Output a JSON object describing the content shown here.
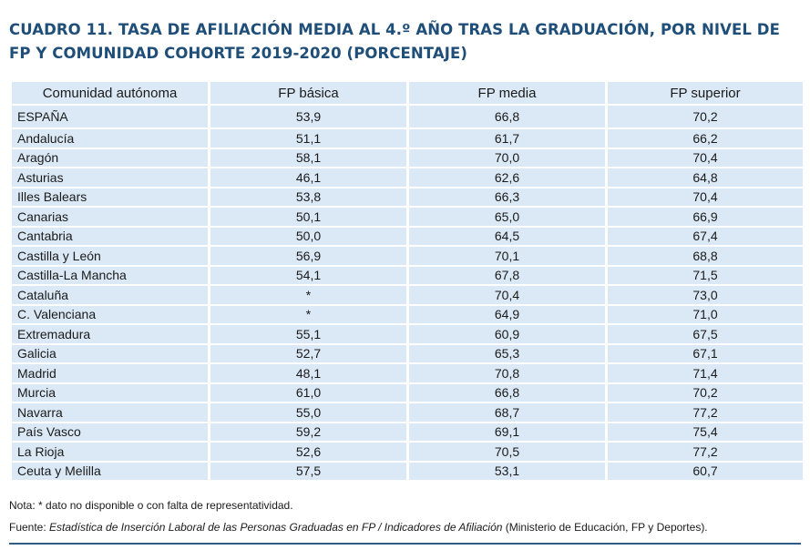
{
  "title": "CUADRO 11. TASA DE AFILIACIÓN MEDIA AL 4.º AÑO TRAS LA GRADUACIÓN, POR NIVEL DE FP Y COMUNIDAD COHORTE 2019-2020 (PORCENTAJE)",
  "table": {
    "headers": [
      "Comunidad autónoma",
      "FP básica",
      "FP media",
      "FP superior"
    ],
    "rows": [
      [
        "ESPAÑA",
        "53,9",
        "66,8",
        "70,2"
      ],
      [
        "Andalucía",
        "51,1",
        "61,7",
        "66,2"
      ],
      [
        "Aragón",
        "58,1",
        "70,0",
        "70,4"
      ],
      [
        "Asturias",
        "46,1",
        "62,6",
        "64,8"
      ],
      [
        "Illes Balears",
        "53,8",
        "66,3",
        "70,4"
      ],
      [
        "Canarias",
        "50,1",
        "65,0",
        "66,9"
      ],
      [
        "Cantabria",
        "50,0",
        "64,5",
        "67,4"
      ],
      [
        "Castilla y León",
        "56,9",
        "70,1",
        "68,8"
      ],
      [
        "Castilla-La Mancha",
        "54,1",
        "67,8",
        "71,5"
      ],
      [
        "Cataluña",
        "*",
        "70,4",
        "73,0"
      ],
      [
        "C. Valenciana",
        "*",
        "64,9",
        "71,0"
      ],
      [
        "Extremadura",
        "55,1",
        "60,9",
        "67,5"
      ],
      [
        "Galicia",
        "52,7",
        "65,3",
        "67,1"
      ],
      [
        "Madrid",
        "48,1",
        "70,8",
        "71,4"
      ],
      [
        "Murcia",
        "61,0",
        "66,8",
        "70,2"
      ],
      [
        "Navarra",
        "55,0",
        "68,7",
        "77,2"
      ],
      [
        "País Vasco",
        "59,2",
        "69,1",
        "75,4"
      ],
      [
        "La Rioja",
        "52,6",
        "70,5",
        "77,2"
      ],
      [
        "Ceuta y Melilla",
        "57,5",
        "53,1",
        "60,7"
      ]
    ]
  },
  "note": "Nota: * dato no disponible o con falta de representatividad.",
  "source": {
    "prefix": "Fuente: ",
    "italic": "Estadística de Inserción Laboral de las Personas Graduadas en FP / Indicadores de Afiliación",
    "suffix": " (Ministerio de Educación, FP y Deportes)."
  },
  "colors": {
    "title": "#1f4e79",
    "cell_bg": "#dbe9f6",
    "rule": "#2f5c8a"
  }
}
